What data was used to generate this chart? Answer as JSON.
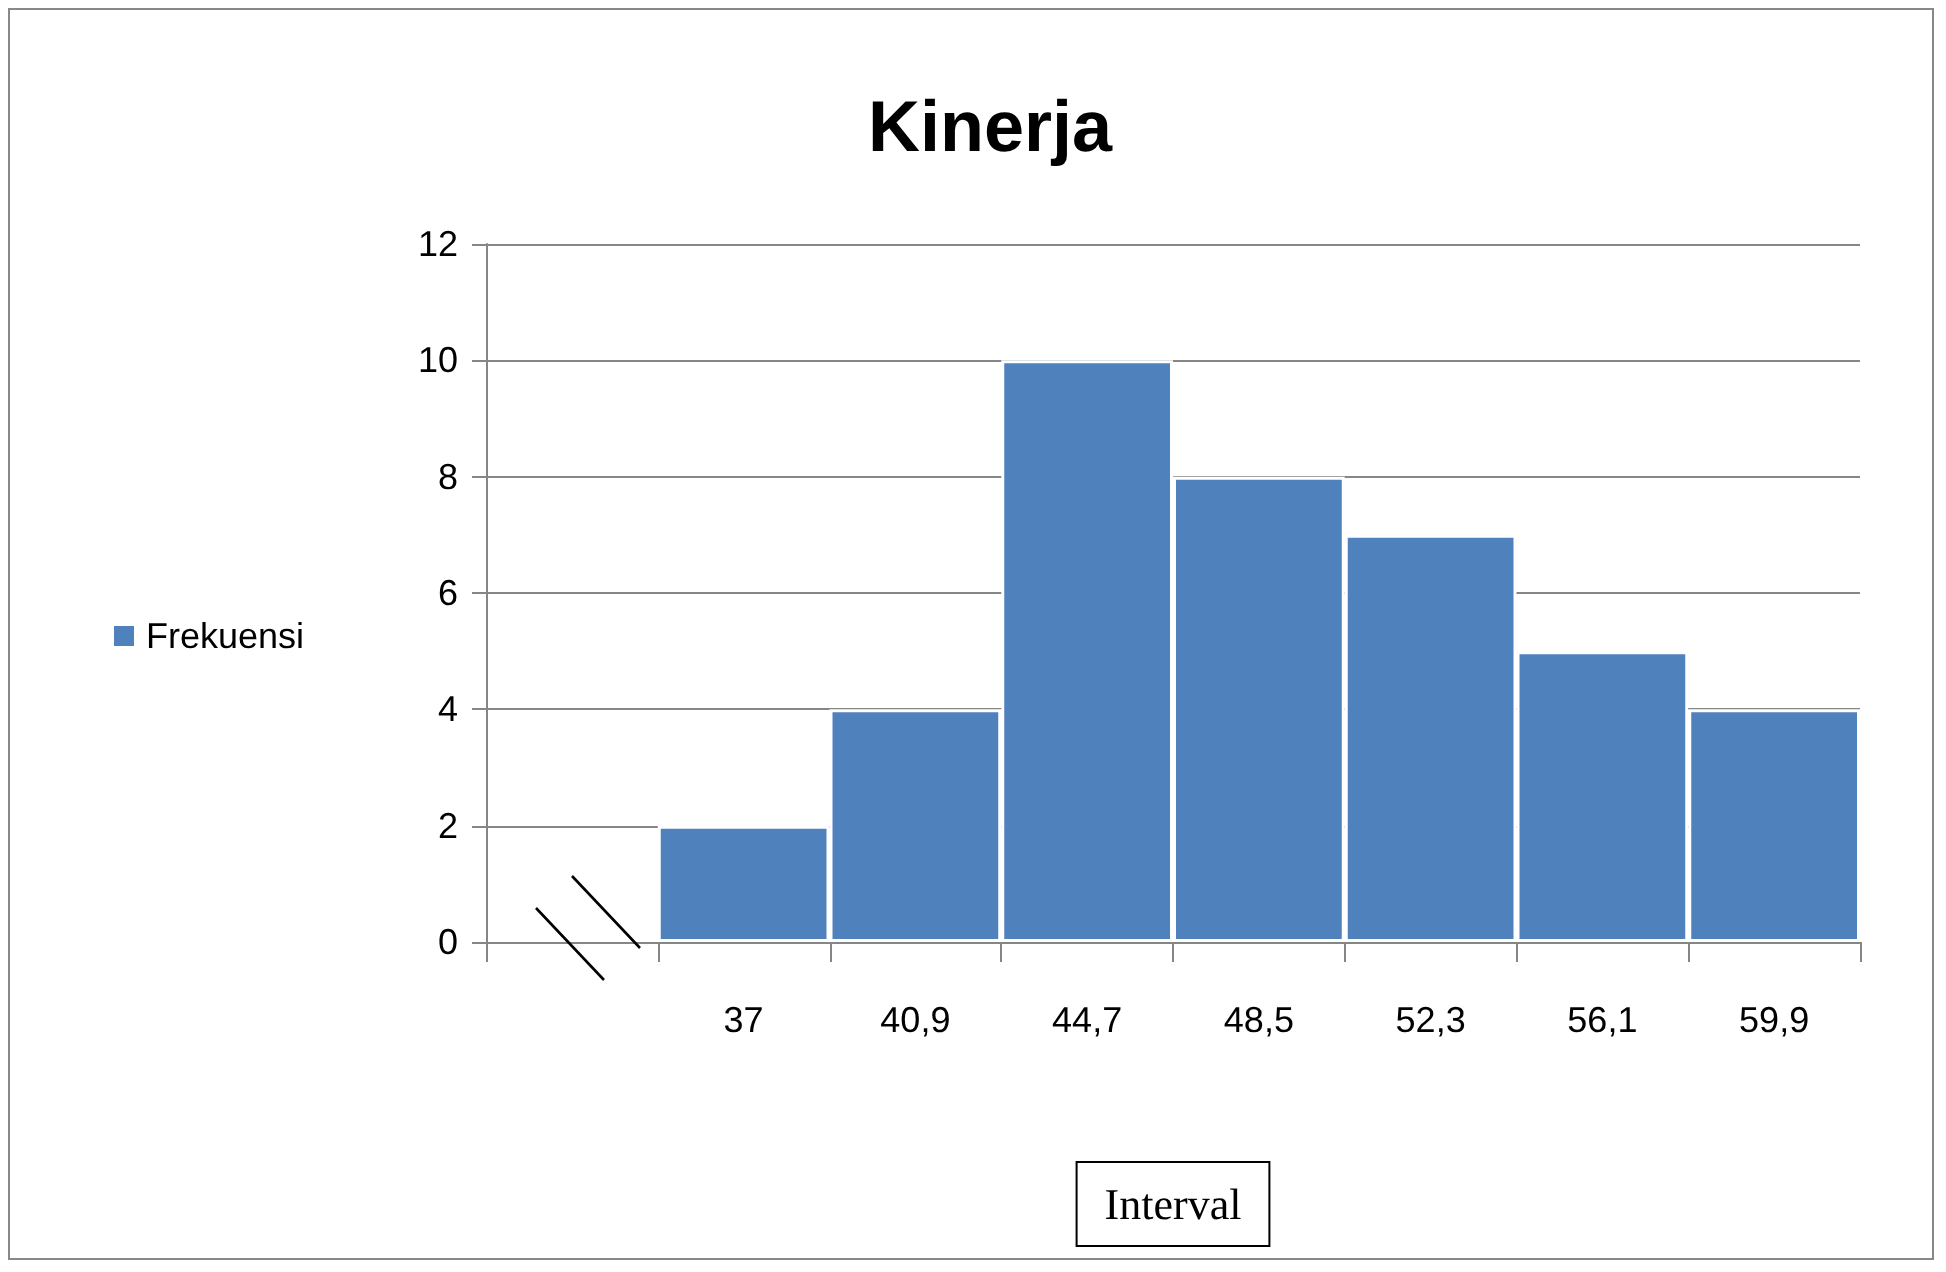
{
  "chart_data": {
    "type": "bar",
    "title": "Kinerja",
    "xlabel": "Interval",
    "categories": [
      null,
      "37",
      "40,9",
      "44,7",
      "48,5",
      "52,3",
      "56,1",
      "59,9"
    ],
    "series": [
      {
        "name": "Frekuensi",
        "color": "#4f81bd",
        "values": [
          null,
          2,
          4,
          10,
          8,
          7,
          5,
          4
        ]
      }
    ],
    "ylim": [
      0,
      12
    ],
    "yticks": [
      0,
      2,
      4,
      6,
      8,
      10,
      12
    ],
    "grid": "y",
    "legend": "left"
  }
}
